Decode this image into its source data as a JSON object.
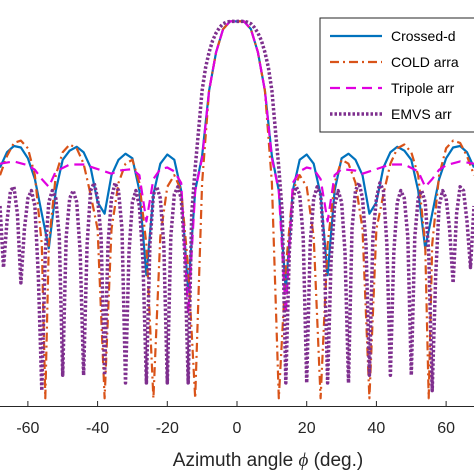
{
  "chart_data": {
    "type": "line",
    "title": "",
    "xlabel": "Azimuth angle ",
    "xlabel_symbol": "ϕ",
    "xlabel_unit": " (deg.)",
    "ylabel": "",
    "xlim": [
      -68,
      68
    ],
    "ylim": [
      -50,
      2
    ],
    "xticks": [
      -60,
      -40,
      -20,
      0,
      20,
      40,
      60
    ],
    "xtick_labels": [
      "-60",
      "-40",
      "-20",
      "0",
      "20",
      "40",
      "60"
    ],
    "grid": false,
    "legend": {
      "placement": "top-right",
      "entries": [
        "Crossed-d",
        "COLD arra",
        "Tripole arr",
        "EMVS arr"
      ]
    },
    "series": [
      {
        "name": "Crossed-dipole array",
        "color": "#0072BD",
        "dash": "solid",
        "x": [
          -68,
          -66,
          -64,
          -62,
          -60,
          -58,
          -56,
          -54,
          -52,
          -50,
          -48,
          -46,
          -44,
          -42,
          -40,
          -38,
          -36,
          -34,
          -32,
          -30,
          -28,
          -26,
          -24,
          -22,
          -20,
          -18,
          -16,
          -14,
          -12,
          -10,
          -8,
          -6,
          -4,
          -2,
          0,
          2,
          4,
          6,
          8,
          10,
          12,
          14,
          16,
          18,
          20,
          22,
          24,
          26,
          28,
          30,
          32,
          34,
          36,
          38,
          40,
          42,
          44,
          46,
          48,
          50,
          52,
          54,
          56,
          58,
          60,
          62,
          64,
          66,
          68
        ],
        "y": [
          -19,
          -17,
          -16.2,
          -16.4,
          -17.8,
          -20.5,
          -25,
          -29.5,
          -22,
          -18,
          -16.8,
          -16.3,
          -17,
          -19,
          -23.5,
          -25,
          -20,
          -18,
          -17.2,
          -17.8,
          -22,
          -33,
          -22.5,
          -18.5,
          -17.3,
          -18,
          -22,
          -35,
          -22,
          -17.5,
          -9,
          -4,
          -1,
          0,
          0,
          0,
          -1,
          -4,
          -9,
          -17.5,
          -22,
          -35,
          -22,
          -18,
          -17.3,
          -18.5,
          -22.5,
          -33,
          -22,
          -17.8,
          -17.2,
          -18,
          -20,
          -25,
          -23.5,
          -19,
          -17,
          -16.3,
          -16.8,
          -18,
          -22,
          -29.5,
          -25,
          -20.5,
          -17.8,
          -16.4,
          -16.2,
          -17,
          -19
        ]
      },
      {
        "name": "COLD array",
        "color": "#D95319",
        "dash": "dashdot",
        "x": [
          -68,
          -66,
          -64,
          -62,
          -60,
          -58,
          -56,
          -55,
          -54,
          -52,
          -50,
          -48,
          -46,
          -44,
          -42,
          -40,
          -38,
          -36,
          -34,
          -32,
          -30,
          -28,
          -26,
          -24,
          -22,
          -20,
          -18,
          -16,
          -14,
          -12,
          -10,
          -8,
          -6,
          -4,
          -2,
          0,
          2,
          4,
          6,
          8,
          10,
          12,
          14,
          16,
          18,
          20,
          22,
          24,
          26,
          28,
          30,
          32,
          34,
          36,
          38,
          40,
          42,
          44,
          46,
          48,
          50,
          52,
          54,
          55,
          56,
          58,
          60,
          62,
          64,
          66,
          68
        ],
        "y": [
          -20,
          -17.5,
          -15.8,
          -15.5,
          -16.5,
          -20,
          -29,
          -49,
          -29,
          -20,
          -17,
          -16,
          -16.5,
          -18.5,
          -22.5,
          -27,
          -49,
          -27,
          -21,
          -18.5,
          -18,
          -21,
          -29,
          -49,
          -28,
          -21.5,
          -20,
          -22,
          -32,
          -49,
          -21,
          -9,
          -4,
          -1,
          0,
          0,
          0,
          -1,
          -4,
          -9,
          -21,
          -49,
          -32,
          -22,
          -20,
          -21.5,
          -28,
          -49,
          -29,
          -21,
          -18,
          -18.5,
          -21,
          -27,
          -49,
          -27,
          -22.5,
          -18.5,
          -16.5,
          -16,
          -17,
          -20,
          -29,
          -49,
          -29,
          -20,
          -16.5,
          -15.5,
          -15.8,
          -17.5,
          -20
        ]
      },
      {
        "name": "Tripole array",
        "color": "#E000E0",
        "dash": "dashed",
        "x": [
          -68,
          -64,
          -60,
          -58,
          -56,
          -54,
          -52,
          -48,
          -44,
          -40,
          -38,
          -36,
          -34,
          -30,
          -28,
          -26,
          -24,
          -22,
          -20,
          -18,
          -16,
          -14,
          -12,
          -10,
          -8,
          -6,
          -4,
          -2,
          0,
          2,
          4,
          6,
          8,
          10,
          12,
          14,
          16,
          18,
          20,
          22,
          24,
          26,
          28,
          30,
          34,
          36,
          38,
          40,
          44,
          48,
          52,
          54,
          56,
          58,
          60,
          64,
          68
        ],
        "y": [
          -18.5,
          -18.2,
          -18.7,
          -19.3,
          -20.5,
          -21.5,
          -19.5,
          -18.6,
          -18.6,
          -19.2,
          -19.5,
          -19.8,
          -19.4,
          -19.2,
          -20,
          -26,
          -20.5,
          -19.2,
          -19,
          -19.5,
          -21,
          -38,
          -22,
          -17.8,
          -9,
          -4,
          -1,
          0,
          0,
          0,
          -1,
          -4,
          -9,
          -17.8,
          -22,
          -38,
          -21,
          -19.5,
          -19,
          -19.2,
          -20.5,
          -26,
          -20,
          -19.2,
          -19.4,
          -19.8,
          -19.5,
          -19.2,
          -18.6,
          -18.6,
          -19.5,
          -21.5,
          -20.5,
          -19.3,
          -18.7,
          -18.2,
          -18.5
        ]
      },
      {
        "name": "EMVS array",
        "color": "#7E2F8E",
        "dash": "dotted",
        "x": [
          -68,
          -67,
          -66,
          -65,
          -64,
          -63,
          -62,
          -61,
          -60,
          -59,
          -58,
          -57,
          -56,
          -55,
          -54,
          -53,
          -52,
          -51,
          -50,
          -49,
          -48,
          -47,
          -46,
          -45,
          -44,
          -43,
          -42,
          -41,
          -40,
          -39,
          -38,
          -37,
          -36,
          -35,
          -34,
          -33,
          -32,
          -31,
          -30,
          -29,
          -28,
          -27,
          -26,
          -25,
          -24,
          -23,
          -22,
          -21,
          -20,
          -19,
          -18,
          -17,
          -16,
          -15,
          -14,
          -13,
          -12,
          -11,
          -10,
          -9,
          -8,
          -7,
          -6,
          -5,
          -4,
          -3,
          -2,
          -1,
          0,
          1,
          2,
          3,
          4,
          5,
          6,
          7,
          8,
          9,
          10,
          11,
          12,
          13,
          14,
          15,
          16,
          17,
          18,
          19,
          20,
          21,
          22,
          23,
          24,
          25,
          26,
          27,
          28,
          29,
          30,
          31,
          32,
          33,
          34,
          35,
          36,
          37,
          38,
          39,
          40,
          41,
          42,
          43,
          44,
          45,
          46,
          47,
          48,
          49,
          50,
          51,
          52,
          53,
          54,
          55,
          56,
          57,
          58,
          59,
          60,
          61,
          62,
          63,
          64,
          65,
          66,
          67,
          68
        ],
        "y": [
          -24,
          -32,
          -26,
          -22,
          -21.5,
          -25,
          -34,
          -27,
          -23,
          -22,
          -24,
          -33,
          -48,
          -30,
          -23.5,
          -22,
          -23,
          -28,
          -46,
          -28,
          -23,
          -22,
          -23.5,
          -30,
          -46,
          -29,
          -22,
          -21,
          -23,
          -28,
          -46,
          -29,
          -23,
          -21,
          -22,
          -27,
          -47,
          -30,
          -23.5,
          -22,
          -24,
          -31,
          -47,
          -29,
          -22.5,
          -21.5,
          -23,
          -29,
          -47,
          -28,
          -22.5,
          -21.5,
          -23,
          -30,
          -47,
          -25,
          -19,
          -14,
          -9,
          -6,
          -4,
          -2.5,
          -1.5,
          -0.8,
          -0.3,
          -0.1,
          0,
          0,
          0,
          0,
          0,
          -0.1,
          -0.3,
          -0.8,
          -1.5,
          -2.5,
          -4,
          -6,
          -9,
          -14,
          -19,
          -25,
          -47,
          -30,
          -23,
          -21.5,
          -22.5,
          -28,
          -47,
          -29,
          -23,
          -21.5,
          -22.5,
          -29,
          -47,
          -31,
          -24,
          -22,
          -23.5,
          -30,
          -47,
          -27,
          -22,
          -21,
          -23,
          -29,
          -46,
          -28,
          -23,
          -21,
          -22,
          -29,
          -46,
          -30,
          -23.5,
          -22,
          -23,
          -28,
          -46,
          -28,
          -23,
          -22,
          -23.5,
          -30,
          -48,
          -33,
          -24,
          -22,
          -23,
          -27,
          -34,
          -25,
          -21.5,
          -22,
          -26,
          -32,
          -24
        ]
      }
    ]
  }
}
